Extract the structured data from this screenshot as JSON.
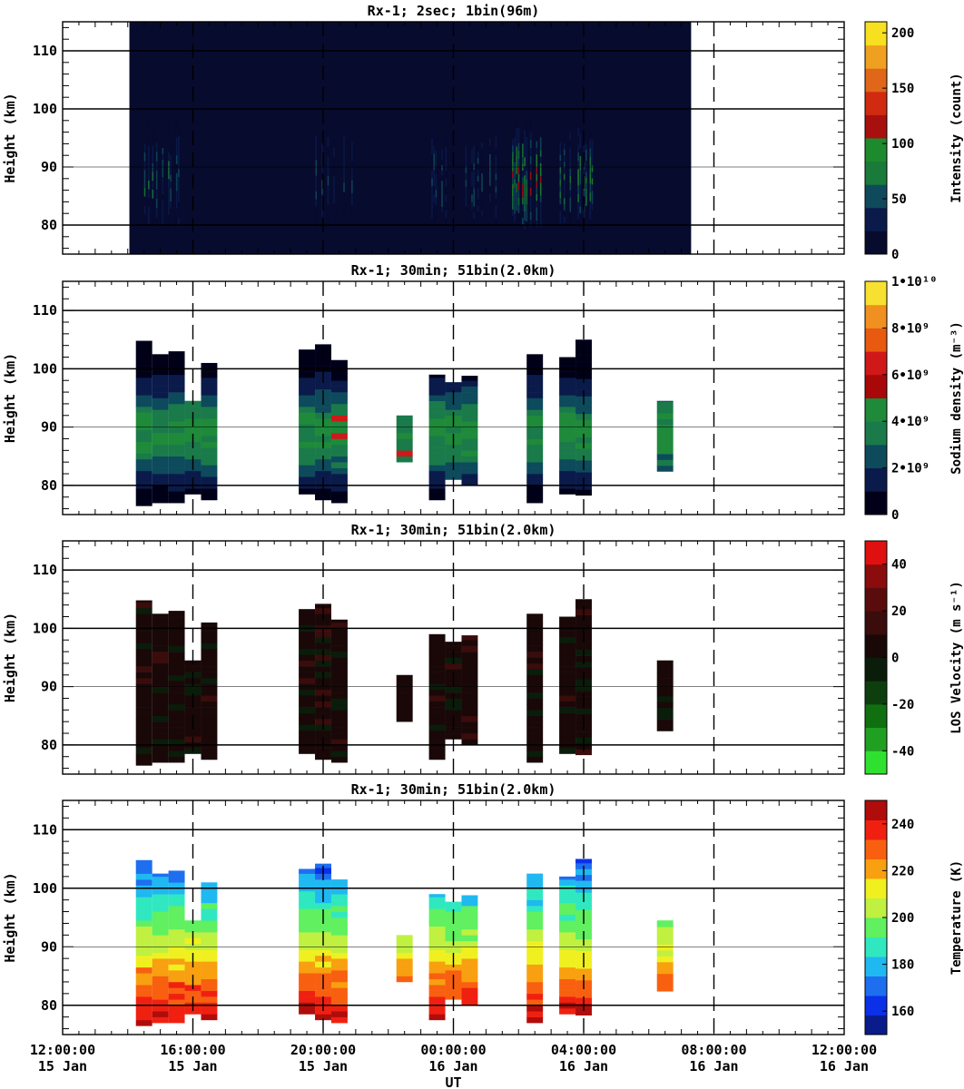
{
  "figure": {
    "x_label": "UT",
    "x_range_hours": [
      0,
      24
    ],
    "x_ticks": [
      {
        "hour": 0,
        "time": "12:00:00",
        "date": "15 Jan"
      },
      {
        "hour": 4,
        "time": "16:00:00",
        "date": "15 Jan"
      },
      {
        "hour": 8,
        "time": "20:00:00",
        "date": "15 Jan"
      },
      {
        "hour": 12,
        "time": "00:00:00",
        "date": "16 Jan"
      },
      {
        "hour": 16,
        "time": "04:00:00",
        "date": "16 Jan"
      },
      {
        "hour": 20,
        "time": "08:00:00",
        "date": "16 Jan"
      },
      {
        "hour": 24,
        "time": "12:00:00",
        "date": "16 Jan"
      }
    ],
    "y_label": "Height (km)",
    "y_range": [
      75,
      115
    ],
    "y_ticks": [
      80,
      90,
      100,
      110
    ],
    "panel_titles": [
      "Rx-1;  2sec; 1bin(96m)",
      "Rx-1; 30min; 51bin(2.0km)",
      "Rx-1; 30min; 51bin(2.0km)",
      "Rx-1; 30min; 51bin(2.0km)"
    ],
    "colorbar_labels": [
      "Intensity (count)",
      "Sodium density (m⁻³)",
      "LOS Velocity (m s⁻¹)",
      "Temperature (K)"
    ],
    "colorbar_ticks": [
      [
        {
          "v": 0,
          "t": "0"
        },
        {
          "v": 50,
          "t": "50"
        },
        {
          "v": 100,
          "t": "100"
        },
        {
          "v": 150,
          "t": "150"
        },
        {
          "v": 200,
          "t": "200"
        }
      ],
      [
        {
          "v": 0,
          "t": "0"
        },
        {
          "v": 2,
          "t": "2•10⁹"
        },
        {
          "v": 4,
          "t": "4•10⁹"
        },
        {
          "v": 6,
          "t": "6•10⁹"
        },
        {
          "v": 8,
          "t": "8•10⁹"
        },
        {
          "v": 10,
          "t": "1•10¹⁰"
        }
      ],
      [
        {
          "v": -40,
          "t": "-40"
        },
        {
          "v": -20,
          "t": "-20"
        },
        {
          "v": 0,
          "t": "0"
        },
        {
          "v": 20,
          "t": "20"
        },
        {
          "v": 40,
          "t": "40"
        }
      ],
      [
        {
          "v": 160,
          "t": "160"
        },
        {
          "v": 180,
          "t": "180"
        },
        {
          "v": 200,
          "t": "200"
        },
        {
          "v": 220,
          "t": "220"
        },
        {
          "v": 240,
          "t": "240"
        }
      ]
    ],
    "colors": {
      "intensity": [
        "#070b2e",
        "#0a1a4a",
        "#0f4a5c",
        "#1a7a3a",
        "#1e8a2e",
        "#a80f0f",
        "#d02a10",
        "#e0661a",
        "#f0a020",
        "#f7e020"
      ],
      "density": [
        "#000018",
        "#0a1a4a",
        "#0d4a5c",
        "#1a7a4a",
        "#1e8a3a",
        "#a80808",
        "#d01818",
        "#e85a10",
        "#f09020",
        "#f8e030"
      ],
      "velocity": [
        "#30e030",
        "#20a020",
        "#107010",
        "#0e3e0e",
        "#0a1c0a",
        "#1a0808",
        "#3a0c0c",
        "#5a0c0c",
        "#8a0c0c",
        "#e01010"
      ],
      "temperature": [
        "#0a1c8c",
        "#0a30e8",
        "#1e6ef0",
        "#20b8f0",
        "#30e8c0",
        "#60f060",
        "#c0f040",
        "#f0f020",
        "#f8a010",
        "#f86010",
        "#f02010",
        "#b00c0c"
      ]
    }
  },
  "chart_data": [
    {
      "type": "heatmap",
      "title": "Rx-1;  2sec; 1bin(96m)",
      "ylabel": "Height (km)",
      "xlabel": "",
      "x_unit": "hours after 12:00:00 15 Jan",
      "ylim": [
        75,
        115
      ],
      "colorbar": {
        "label": "Intensity (count)",
        "range": [
          0,
          210
        ]
      },
      "coverage_hours": [
        2.05,
        19.3
      ],
      "background_value": 3,
      "bursts": [
        {
          "x_start": 2.5,
          "x_end": 3.6,
          "y_start": 78,
          "y_end": 101,
          "peak": 65
        },
        {
          "x_start": 7.7,
          "x_end": 8.9,
          "y_start": 78,
          "y_end": 102,
          "peak": 50
        },
        {
          "x_start": 11.2,
          "x_end": 13.5,
          "y_start": 79,
          "y_end": 100,
          "peak": 55
        },
        {
          "x_start": 13.8,
          "x_end": 14.7,
          "y_start": 79,
          "y_end": 102,
          "peak": 110
        },
        {
          "x_start": 15.2,
          "x_end": 16.3,
          "y_start": 79,
          "y_end": 101,
          "peak": 80
        }
      ]
    },
    {
      "type": "heatmap",
      "title": "Rx-1; 30min; 51bin(2.0km)",
      "ylabel": "Height (km)",
      "xlabel": "",
      "x_unit": "hours after 12:00:00 15 Jan",
      "ylim": [
        75,
        115
      ],
      "colorbar": {
        "label": "Sodium density (m⁻³)",
        "range": [
          0,
          10
        ],
        "unit": "1e9 m^-3"
      },
      "columns": [
        {
          "x": 2.5,
          "bottom": 76.5,
          "top": 104.8
        },
        {
          "x": 3.0,
          "bottom": 77,
          "top": 102.5
        },
        {
          "x": 3.5,
          "bottom": 77,
          "top": 103
        },
        {
          "x": 4.0,
          "bottom": 78.5,
          "top": 94.5
        },
        {
          "x": 4.5,
          "bottom": 77.5,
          "top": 101
        },
        {
          "x": 7.5,
          "bottom": 78.5,
          "top": 103.3
        },
        {
          "x": 8.0,
          "bottom": 77.5,
          "top": 104.2
        },
        {
          "x": 8.5,
          "bottom": 77,
          "top": 101.5
        },
        {
          "x": 10.5,
          "bottom": 84,
          "top": 92
        },
        {
          "x": 11.5,
          "bottom": 77.5,
          "top": 99
        },
        {
          "x": 12.0,
          "bottom": 81,
          "top": 97.7
        },
        {
          "x": 12.5,
          "bottom": 80,
          "top": 98.8
        },
        {
          "x": 14.5,
          "bottom": 77,
          "top": 102.5
        },
        {
          "x": 15.5,
          "bottom": 78.5,
          "top": 102
        },
        {
          "x": 16.0,
          "bottom": 78.3,
          "top": 105
        },
        {
          "x": 18.5,
          "bottom": 82.4,
          "top": 94.5
        }
      ]
    },
    {
      "type": "heatmap",
      "title": "Rx-1; 30min; 51bin(2.0km)",
      "ylabel": "Height (km)",
      "xlabel": "",
      "x_unit": "hours after 12:00:00 15 Jan",
      "ylim": [
        75,
        115
      ],
      "colorbar": {
        "label": "LOS Velocity (m s⁻¹)",
        "range": [
          -50,
          50
        ]
      },
      "typical_value": 5,
      "columns_same_as_panel": 2
    },
    {
      "type": "heatmap",
      "title": "Rx-1; 30min; 51bin(2.0km)",
      "ylabel": "Height (km)",
      "xlabel": "UT",
      "x_unit": "hours after 12:00:00 15 Jan",
      "ylim": [
        75,
        115
      ],
      "colorbar": {
        "label": "Temperature (K)",
        "range": [
          150,
          250
        ]
      },
      "profile": [
        {
          "km": 78,
          "K": 242
        },
        {
          "km": 80,
          "K": 238
        },
        {
          "km": 82,
          "K": 232
        },
        {
          "km": 84,
          "K": 228
        },
        {
          "km": 86,
          "K": 222
        },
        {
          "km": 88,
          "K": 215
        },
        {
          "km": 90,
          "K": 208
        },
        {
          "km": 92,
          "K": 202
        },
        {
          "km": 94,
          "K": 196
        },
        {
          "km": 96,
          "K": 190
        },
        {
          "km": 98,
          "K": 185
        },
        {
          "km": 100,
          "K": 180
        },
        {
          "km": 102,
          "K": 174
        },
        {
          "km": 104,
          "K": 168
        }
      ],
      "columns_same_as_panel": 2
    }
  ]
}
